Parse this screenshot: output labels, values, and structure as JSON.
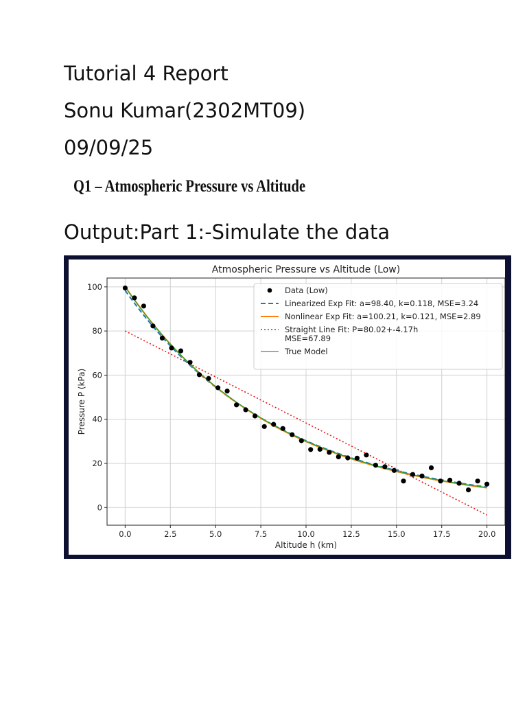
{
  "document": {
    "line1": "Tutorial 4 Report",
    "line2": "Sonu Kumar(2302MT09)",
    "line3": "09/09/25",
    "question_heading": "Q1 – Atmospheric Pressure vs Altitude",
    "section_heading": "Output:Part 1:-Simulate the data"
  },
  "chart_data": {
    "type": "scatter",
    "title": "Atmospheric Pressure vs Altitude (Low)",
    "xlabel": "Altitude h (km)",
    "ylabel": "Pressure P (kPa)",
    "xlim": [
      -1.0,
      21.0
    ],
    "ylim": [
      -8,
      104
    ],
    "xticks": [
      "0.0",
      "2.5",
      "5.0",
      "7.5",
      "10.0",
      "12.5",
      "15.0",
      "17.5",
      "20.0"
    ],
    "yticks": [
      "0",
      "20",
      "40",
      "60",
      "80",
      "100"
    ],
    "grid": true,
    "legend_position": "top-right",
    "series": [
      {
        "name": "Data (Low)",
        "kind": "points",
        "color": "#000000",
        "x": [
          0.0,
          0.513,
          1.026,
          1.538,
          2.051,
          2.564,
          3.077,
          3.59,
          4.103,
          4.615,
          5.128,
          5.641,
          6.154,
          6.667,
          7.179,
          7.692,
          8.205,
          8.718,
          9.231,
          9.744,
          10.256,
          10.769,
          11.282,
          11.795,
          12.308,
          12.821,
          13.333,
          13.846,
          14.359,
          14.872,
          15.385,
          15.897,
          16.41,
          16.923,
          17.436,
          17.949,
          18.462,
          18.974,
          19.487,
          20.0
        ],
        "y": [
          99.5,
          95.0,
          91.3,
          82.3,
          76.8,
          72.3,
          71.0,
          65.8,
          60.2,
          58.5,
          54.3,
          52.8,
          46.5,
          44.3,
          41.5,
          36.7,
          37.7,
          35.8,
          33.0,
          30.3,
          26.3,
          26.4,
          25.0,
          23.0,
          22.5,
          22.4,
          23.8,
          19.2,
          18.5,
          16.8,
          12.0,
          15.0,
          14.3,
          18.0,
          12.0,
          12.4,
          11.0,
          8.0,
          12.0,
          10.6
        ]
      },
      {
        "name": "Linearized Exp Fit: a=98.40, k=0.118, MSE=3.24",
        "kind": "exp",
        "a": 98.4,
        "k": 0.118,
        "color": "#1f77b4",
        "style": "dashed"
      },
      {
        "name": "Nonlinear Exp Fit: a=100.21, k=0.121, MSE=2.89",
        "kind": "exp",
        "a": 100.21,
        "k": 0.121,
        "color": "#ff7f0e",
        "style": "solid"
      },
      {
        "name": "Straight Line Fit: P=80.02+-4.17h\nMSE=67.89",
        "kind": "line",
        "intercept": 80.02,
        "slope": -4.17,
        "color": "#ee1111",
        "style": "dotted"
      },
      {
        "name": "True Model",
        "kind": "exp",
        "a": 100.0,
        "k": 0.12,
        "color": "#2ca02c",
        "style": "solid"
      }
    ]
  }
}
